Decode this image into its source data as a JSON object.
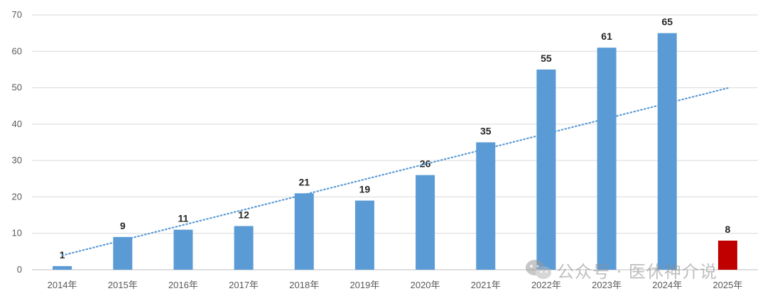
{
  "chart_data": {
    "type": "bar",
    "title": "",
    "xlabel": "",
    "ylabel": "",
    "categories": [
      "2014年",
      "2015年",
      "2016年",
      "2017年",
      "2018年",
      "2019年",
      "2020年",
      "2021年",
      "2022年",
      "2023年",
      "2024年",
      "2025年"
    ],
    "values": [
      1,
      9,
      11,
      12,
      21,
      19,
      26,
      35,
      55,
      61,
      65,
      8
    ],
    "data_labels": [
      "1",
      "9",
      "11",
      "12",
      "21",
      "19",
      "26",
      "35",
      "55",
      "61",
      "65",
      "8"
    ],
    "ylim": [
      0,
      70
    ],
    "yticks": [
      0,
      10,
      20,
      30,
      40,
      50,
      60,
      70
    ],
    "ytick_labels": [
      "0",
      "10",
      "20",
      "30",
      "40",
      "50",
      "60",
      "70"
    ],
    "grid": true,
    "legend": "none",
    "trendline": {
      "type": "linear",
      "style": "dotted",
      "color": "#5b9bd5"
    },
    "colors": {
      "bar": "#5b9bd5",
      "highlight_bar": "#c00000",
      "highlight_label": "#ff0000",
      "grid": "#d9d9d9"
    },
    "highlight_index": 11
  },
  "watermark": {
    "icon": "wechat-icon",
    "text": "公众号 · 医休神介说"
  }
}
